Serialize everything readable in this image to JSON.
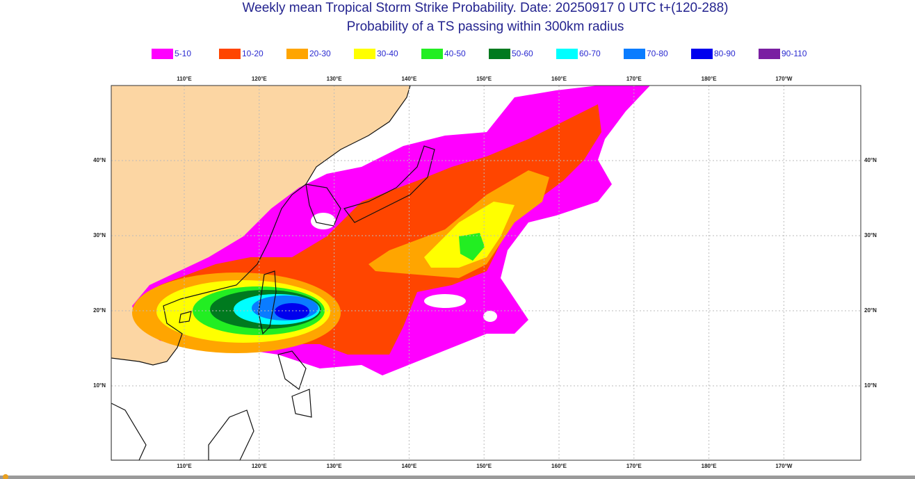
{
  "header": {
    "title": "Weekly mean Tropical Storm Strike Probability. Date: 20250917  0 UTC   t+(120-288)",
    "subtitle": "Probability of a TS passing within  300km radius"
  },
  "legend": [
    {
      "label": "5-10",
      "color": "#ff00ff"
    },
    {
      "label": "10-20",
      "color": "#ff4500"
    },
    {
      "label": "20-30",
      "color": "#ffa500"
    },
    {
      "label": "30-40",
      "color": "#ffff00"
    },
    {
      "label": "40-50",
      "color": "#22ee22"
    },
    {
      "label": "50-60",
      "color": "#007a1f"
    },
    {
      "label": "60-70",
      "color": "#00ffff"
    },
    {
      "label": "70-80",
      "color": "#0a7cff"
    },
    {
      "label": "80-90",
      "color": "#0000ee"
    },
    {
      "label": "90-110",
      "color": "#7a1fa2"
    }
  ],
  "map": {
    "lon_labels": [
      "110°E",
      "120°E",
      "130°E",
      "140°E",
      "150°E",
      "160°E",
      "170°E",
      "180°E",
      "170°W"
    ],
    "lat_labels": [
      "40°N",
      "30°N",
      "20°N",
      "10°N"
    ]
  }
}
